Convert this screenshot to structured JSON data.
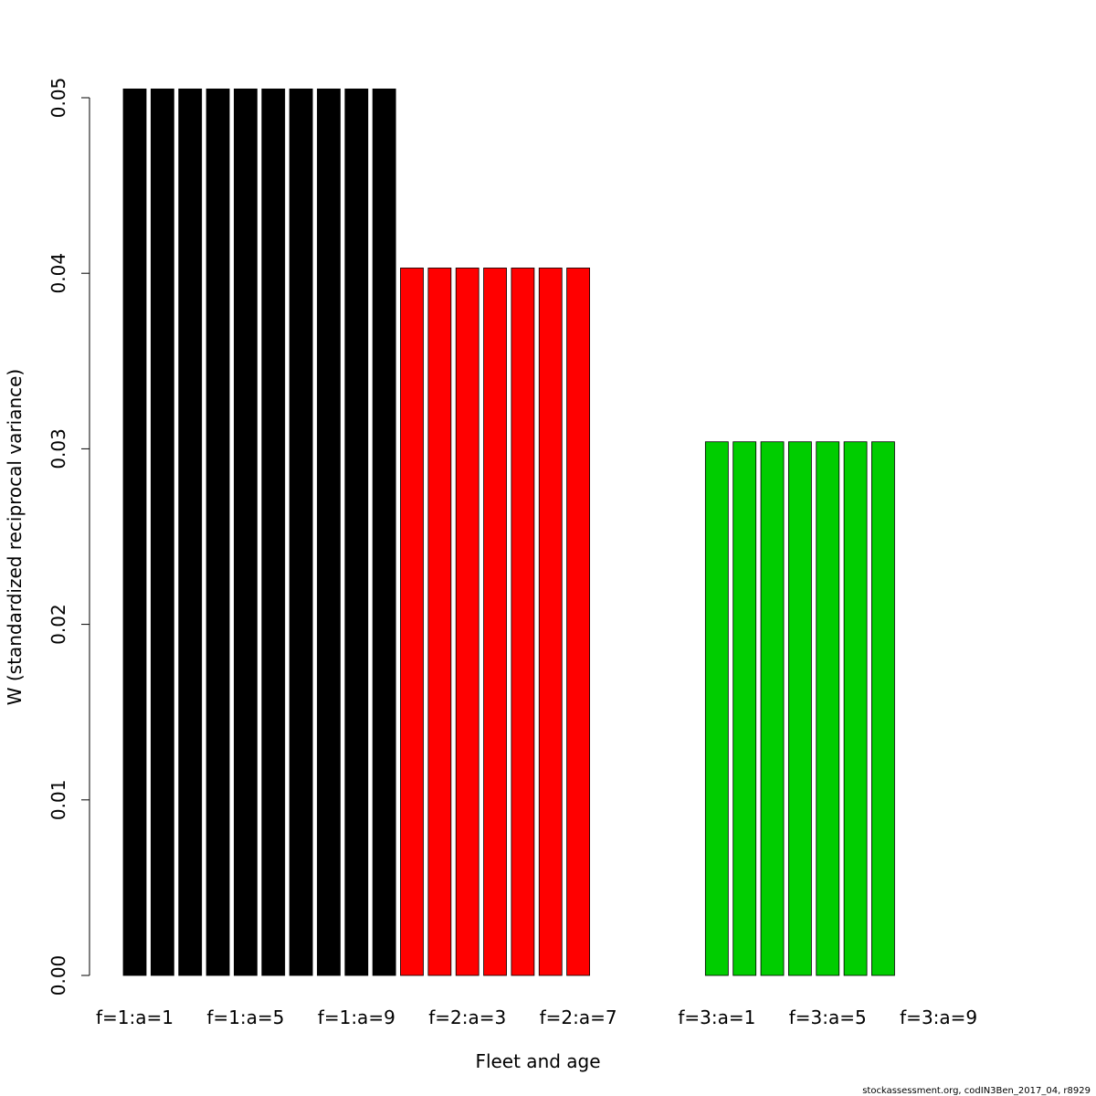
{
  "chart_data": {
    "type": "bar",
    "title": "",
    "xlabel": "Fleet and age",
    "ylabel": "W (standardized reciprocal variance)",
    "ylim": [
      0,
      0.05
    ],
    "yticks": [
      "0.00",
      "0.01",
      "0.02",
      "0.03",
      "0.04",
      "0.05"
    ],
    "ytick_values": [
      0,
      0.01,
      0.02,
      0.03,
      0.04,
      0.05
    ],
    "grid": false,
    "legend": "none",
    "categories": [
      "f=1:a=1",
      "f=1:a=2",
      "f=1:a=3",
      "f=1:a=4",
      "f=1:a=5",
      "f=1:a=6",
      "f=1:a=7",
      "f=1:a=8",
      "f=1:a=9",
      "f=1:a=10",
      "f=2:a=1",
      "f=2:a=2",
      "f=2:a=3",
      "f=2:a=4",
      "f=2:a=5",
      "f=2:a=6",
      "f=2:a=7",
      "f=2:a=8",
      "f=2:a=9",
      "f=2:a=10",
      "f=2:a=11",
      "f=3:a=1",
      "f=3:a=2",
      "f=3:a=3",
      "f=3:a=4",
      "f=3:a=5",
      "f=3:a=6",
      "f=3:a=7",
      "f=3:a=8",
      "f=3:a=9"
    ],
    "values": [
      0.0505,
      0.0505,
      0.0505,
      0.0505,
      0.0505,
      0.0505,
      0.0505,
      0.0505,
      0.0505,
      0.0505,
      0.0403,
      0.0403,
      0.0403,
      0.0403,
      0.0403,
      0.0403,
      0.0403,
      0,
      0,
      0,
      0,
      0.0304,
      0.0304,
      0.0304,
      0.0304,
      0.0304,
      0.0304,
      0.0304,
      0,
      0
    ],
    "bar_colors": [
      "#000000",
      "#000000",
      "#000000",
      "#000000",
      "#000000",
      "#000000",
      "#000000",
      "#000000",
      "#000000",
      "#000000",
      "#ff0000",
      "#ff0000",
      "#ff0000",
      "#ff0000",
      "#ff0000",
      "#ff0000",
      "#ff0000",
      "#ff0000",
      "#ff0000",
      "#ff0000",
      "#ff0000",
      "#00cd00",
      "#00cd00",
      "#00cd00",
      "#00cd00",
      "#00cd00",
      "#00cd00",
      "#00cd00",
      "#00cd00",
      "#00cd00"
    ],
    "shown_xtick_labels": [
      "f=1:a=1",
      "f=1:a=5",
      "f=1:a=9",
      "f=2:a=3",
      "f=2:a=7",
      "f=3:a=1",
      "f=3:a=5",
      "f=3:a=9"
    ]
  },
  "footer": "stockassessment.org, codIN3Ben_2017_04, r8929"
}
